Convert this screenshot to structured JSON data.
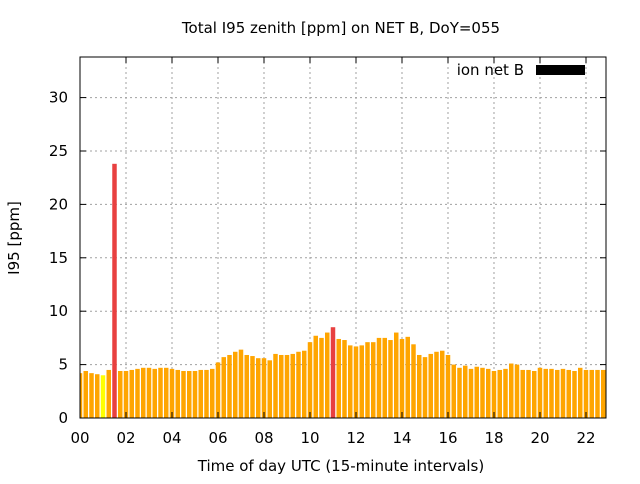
{
  "chart_data": {
    "type": "bar",
    "title": "Total I95 zenith [ppm] on NET B, DoY=055",
    "xlabel": "Time of day UTC (15-minute intervals)",
    "ylabel": "I95 [ppm]",
    "xlim": [
      0,
      22.87
    ],
    "ylim": [
      0,
      33.8
    ],
    "grid": true,
    "legend": {
      "label": "ion net B",
      "placement": "top-right"
    },
    "x_ticks": [
      {
        "value": 0,
        "label": "00"
      },
      {
        "value": 2,
        "label": "02"
      },
      {
        "value": 4,
        "label": "04"
      },
      {
        "value": 6,
        "label": "06"
      },
      {
        "value": 8,
        "label": "08"
      },
      {
        "value": 10,
        "label": "10"
      },
      {
        "value": 12,
        "label": "12"
      },
      {
        "value": 14,
        "label": "14"
      },
      {
        "value": 16,
        "label": "16"
      },
      {
        "value": 18,
        "label": "18"
      },
      {
        "value": 20,
        "label": "20"
      },
      {
        "value": 22,
        "label": "22"
      }
    ],
    "y_ticks": [
      {
        "value": 0,
        "label": "0"
      },
      {
        "value": 5,
        "label": "5"
      },
      {
        "value": 10,
        "label": "10"
      },
      {
        "value": 15,
        "label": "15"
      },
      {
        "value": 20,
        "label": "20"
      },
      {
        "value": 25,
        "label": "25"
      },
      {
        "value": 30,
        "label": "30"
      }
    ],
    "interval_hours": 0.25,
    "values": [
      4.2,
      4.4,
      4.2,
      4.1,
      4.0,
      4.5,
      23.8,
      4.4,
      4.4,
      4.5,
      4.6,
      4.7,
      4.7,
      4.6,
      4.7,
      4.7,
      4.6,
      4.5,
      4.4,
      4.4,
      4.4,
      4.5,
      4.5,
      4.6,
      5.2,
      5.7,
      5.9,
      6.2,
      6.4,
      5.9,
      5.8,
      5.6,
      5.6,
      5.4,
      6.0,
      5.9,
      5.9,
      6.0,
      6.2,
      6.3,
      7.1,
      7.7,
      7.5,
      8.0,
      8.5,
      7.4,
      7.3,
      6.8,
      6.7,
      6.8,
      7.1,
      7.1,
      7.5,
      7.5,
      7.3,
      8.0,
      7.4,
      7.6,
      6.9,
      5.9,
      5.7,
      6.0,
      6.2,
      6.3,
      5.9,
      5.0,
      4.7,
      4.9,
      4.6,
      4.8,
      4.7,
      4.6,
      4.4,
      4.5,
      4.6,
      5.1,
      5.0,
      4.5,
      4.5,
      4.4,
      4.7,
      4.6,
      4.6,
      4.5,
      4.6,
      4.5,
      4.4,
      4.7,
      4.5,
      4.5,
      4.5,
      4.5
    ],
    "colors": {
      "normal": "#ffa500",
      "low": "#ffff00",
      "high": "#e84040",
      "legend": "#000000",
      "grid": "#a0a0a0"
    },
    "color_class": [
      "normal",
      "normal",
      "normal",
      "normal",
      "low",
      "normal",
      "high",
      "normal",
      "normal",
      "normal",
      "normal",
      "normal",
      "normal",
      "normal",
      "normal",
      "normal",
      "normal",
      "normal",
      "normal",
      "normal",
      "normal",
      "normal",
      "normal",
      "normal",
      "normal",
      "normal",
      "normal",
      "normal",
      "normal",
      "normal",
      "normal",
      "normal",
      "normal",
      "normal",
      "normal",
      "normal",
      "normal",
      "normal",
      "normal",
      "normal",
      "normal",
      "normal",
      "normal",
      "normal",
      "high",
      "normal",
      "normal",
      "normal",
      "normal",
      "normal",
      "normal",
      "normal",
      "normal",
      "normal",
      "normal",
      "normal",
      "normal",
      "normal",
      "normal",
      "normal",
      "normal",
      "normal",
      "normal",
      "normal",
      "normal",
      "normal",
      "normal",
      "normal",
      "normal",
      "normal",
      "normal",
      "normal",
      "normal",
      "normal",
      "normal",
      "normal",
      "normal",
      "normal",
      "normal",
      "normal",
      "normal",
      "normal",
      "normal",
      "normal",
      "normal",
      "normal",
      "normal",
      "normal",
      "normal",
      "normal",
      "normal",
      "normal"
    ]
  }
}
